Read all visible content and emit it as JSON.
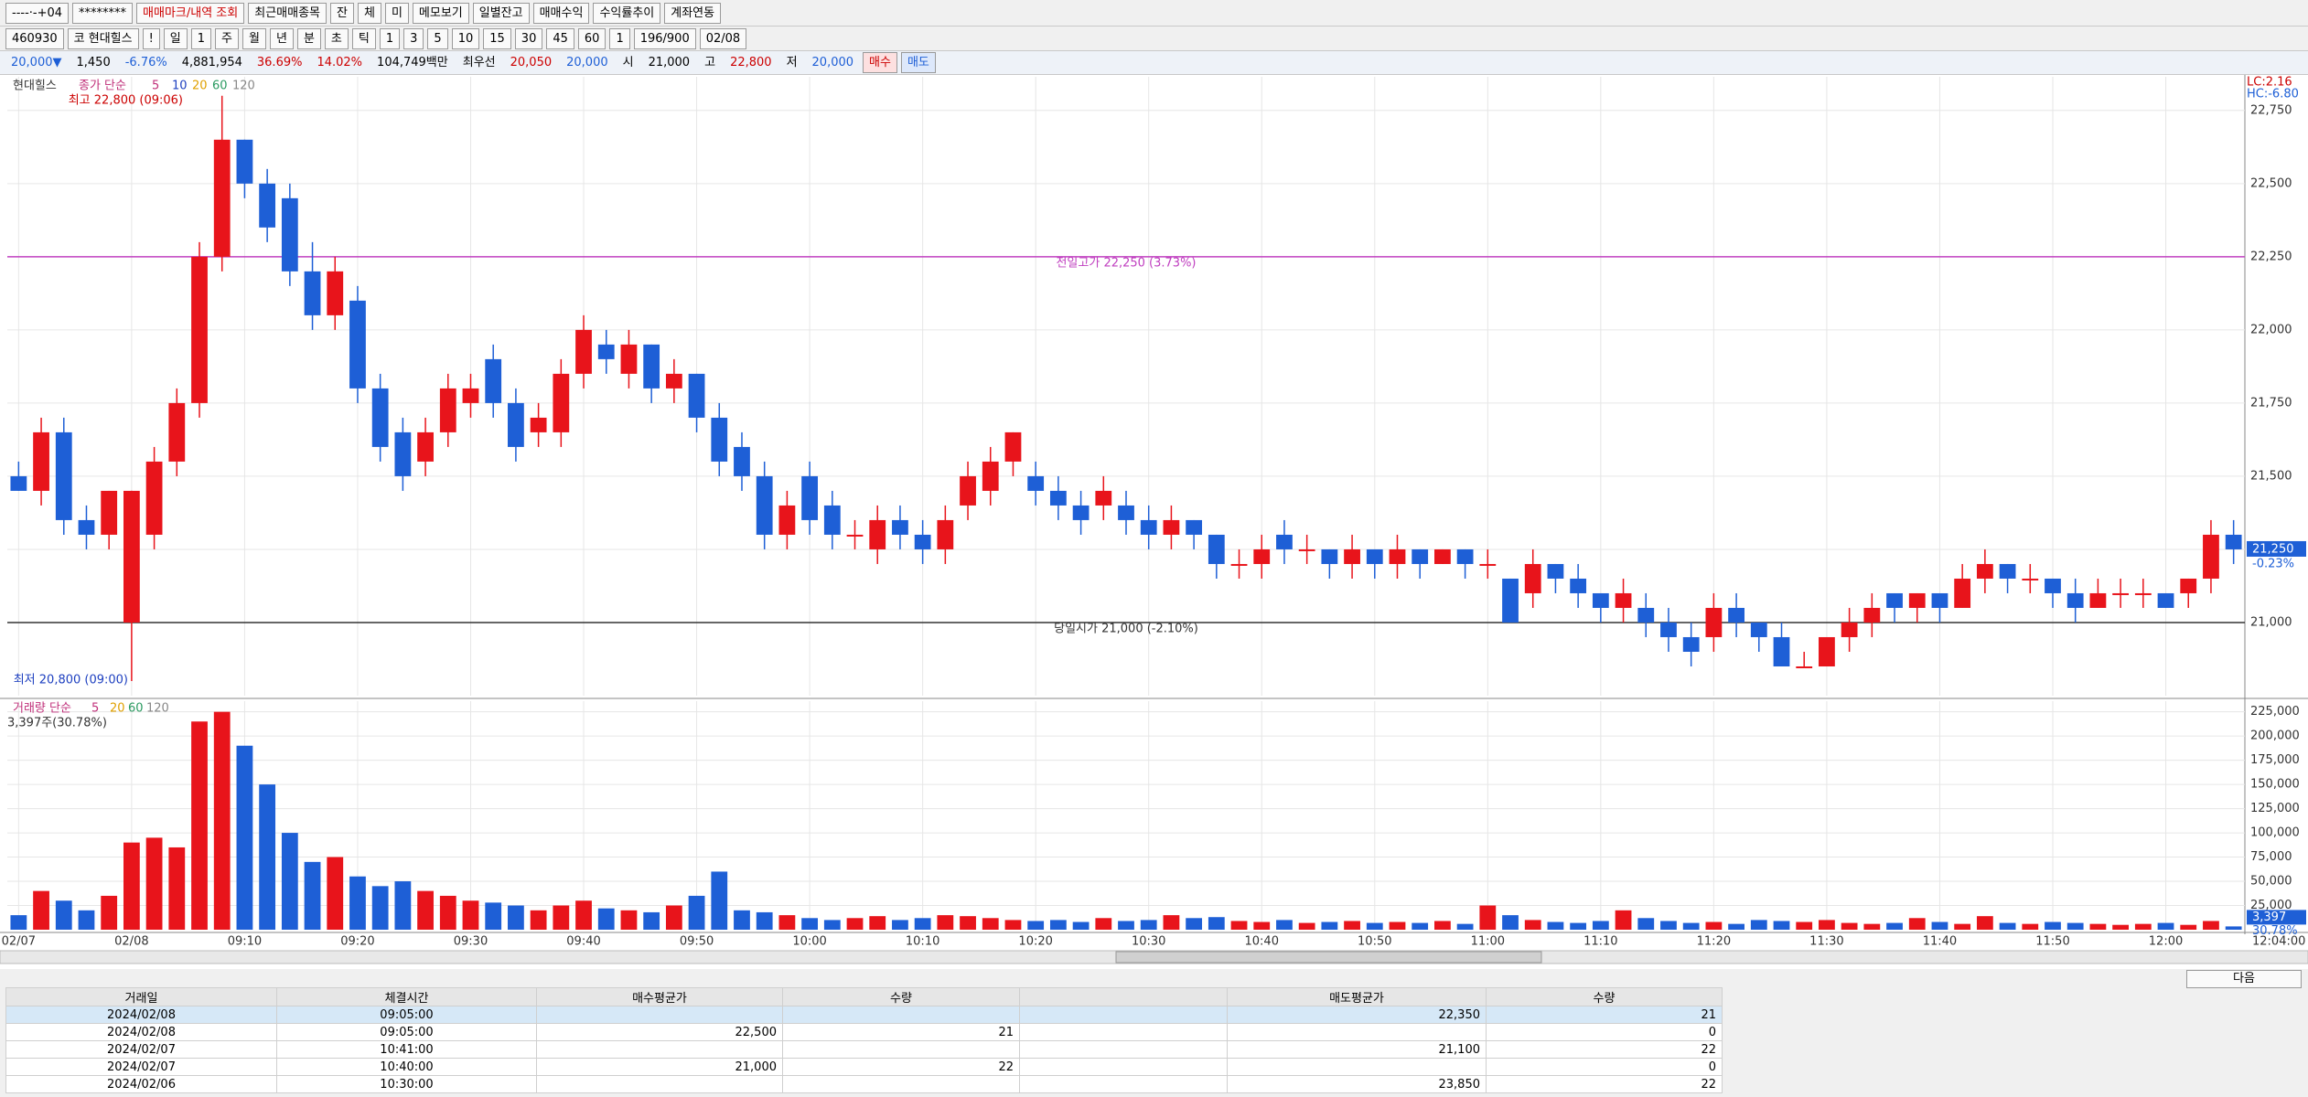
{
  "toolbar_row1": [
    "----·-+04",
    "********",
    "매매마크/내역 조회",
    "최근매매종목",
    "잔",
    "체",
    "미",
    "메모보기",
    "일별잔고",
    "매매수익",
    "수익률추이",
    "계좌연동"
  ],
  "toolbar_row2": [
    "460930",
    "코 현대힐스",
    "!",
    "일",
    "1",
    "주",
    "월",
    "년",
    "분",
    "초",
    "틱",
    "1",
    "3",
    "5",
    "10",
    "15",
    "30",
    "45",
    "60",
    "1",
    "196/900",
    "02/08"
  ],
  "quote_bar": [
    "20,000▼",
    "1,450",
    "-6.76%",
    "4,881,954",
    "36.69%",
    "14.02%",
    "104,749백만",
    "최우선",
    "20,050",
    "20,000",
    "시",
    "21,000",
    "고",
    "22,800",
    "저",
    "20,000",
    "매수",
    "매도"
  ],
  "chart_data": {
    "type": "candlestick",
    "title": "현대힐스",
    "indicator": "종가 단순",
    "ma_periods": [
      "5",
      "10",
      "20",
      "60",
      "120"
    ],
    "high_note": "최고 22,800 (09:06)",
    "low_note": "최저 20,800 (09:00)",
    "corner_labels": [
      "LC:2.16",
      "HC:-6.80"
    ],
    "last": {
      "value": 21250,
      "label": "21,250",
      "change": "-0.23%"
    },
    "reference_lines": [
      {
        "value": 22250,
        "label": "전일고가 22,250 (3.73%)",
        "color": "#c040c0"
      },
      {
        "value": 21000,
        "label": "당일시가 21,000 (-2.10%)",
        "color": "#333333"
      }
    ],
    "up_color": "#e8141b",
    "down_color": "#1e5fd6",
    "grid": true,
    "ylim": [
      20750,
      22865
    ],
    "yticks": [
      {
        "value": 21000,
        "label": "21,000"
      },
      {
        "value": 21250,
        "label": "21,250"
      },
      {
        "value": 21500,
        "label": "21,500"
      },
      {
        "value": 21750,
        "label": "21,750"
      },
      {
        "value": 22000,
        "label": "22,000"
      },
      {
        "value": 22250,
        "label": "22,250"
      },
      {
        "value": 22500,
        "label": "22,500"
      },
      {
        "value": 22750,
        "label": "22,750"
      }
    ],
    "categories": [
      "02/07",
      null,
      null,
      null,
      null,
      "02/08",
      null,
      null,
      null,
      null,
      "09:10",
      null,
      null,
      null,
      null,
      "09:20",
      null,
      null,
      null,
      null,
      "09:30",
      null,
      null,
      null,
      null,
      "09:40",
      null,
      null,
      null,
      null,
      "09:50",
      null,
      null,
      null,
      null,
      "10:00",
      null,
      null,
      null,
      null,
      "10:10",
      null,
      null,
      null,
      null,
      "10:20",
      null,
      null,
      null,
      null,
      "10:30",
      null,
      null,
      null,
      null,
      "10:40",
      null,
      null,
      null,
      null,
      "10:50",
      null,
      null,
      null,
      null,
      "11:00",
      null,
      null,
      null,
      null,
      "11:10",
      null,
      null,
      null,
      null,
      "11:20",
      null,
      null,
      null,
      null,
      "11:30",
      null,
      null,
      null,
      null,
      "11:40",
      null,
      null,
      null,
      null,
      "11:50",
      null,
      null,
      null,
      null,
      "12:00",
      null,
      null,
      null
    ],
    "axis_end_label": "12:04:00",
    "ohlc": [
      [
        21500,
        21550,
        21450,
        21450
      ],
      [
        21450,
        21700,
        21400,
        21650
      ],
      [
        21650,
        21700,
        21300,
        21350
      ],
      [
        21350,
        21400,
        21250,
        21300
      ],
      [
        21300,
        21450,
        21250,
        21450
      ],
      [
        21000,
        21450,
        20800,
        21450
      ],
      [
        21300,
        21600,
        21250,
        21550
      ],
      [
        21550,
        21800,
        21500,
        21750
      ],
      [
        21750,
        22300,
        21700,
        22250
      ],
      [
        22250,
        22800,
        22200,
        22650
      ],
      [
        22650,
        22650,
        22450,
        22500
      ],
      [
        22500,
        22550,
        22300,
        22350
      ],
      [
        22450,
        22500,
        22150,
        22200
      ],
      [
        22200,
        22300,
        22000,
        22050
      ],
      [
        22050,
        22250,
        22000,
        22200
      ],
      [
        22100,
        22150,
        21750,
        21800
      ],
      [
        21800,
        21850,
        21550,
        21600
      ],
      [
        21650,
        21700,
        21450,
        21500
      ],
      [
        21550,
        21700,
        21500,
        21650
      ],
      [
        21650,
        21850,
        21600,
        21800
      ],
      [
        21750,
        21850,
        21700,
        21800
      ],
      [
        21900,
        21950,
        21700,
        21750
      ],
      [
        21750,
        21800,
        21550,
        21600
      ],
      [
        21650,
        21750,
        21600,
        21700
      ],
      [
        21650,
        21900,
        21600,
        21850
      ],
      [
        21850,
        22050,
        21800,
        22000
      ],
      [
        21950,
        22000,
        21850,
        21900
      ],
      [
        21850,
        22000,
        21800,
        21950
      ],
      [
        21950,
        21950,
        21750,
        21800
      ],
      [
        21800,
        21900,
        21750,
        21850
      ],
      [
        21850,
        21850,
        21650,
        21700
      ],
      [
        21700,
        21750,
        21500,
        21550
      ],
      [
        21600,
        21650,
        21450,
        21500
      ],
      [
        21500,
        21550,
        21250,
        21300
      ],
      [
        21300,
        21450,
        21250,
        21400
      ],
      [
        21500,
        21550,
        21300,
        21350
      ],
      [
        21400,
        21450,
        21250,
        21300
      ],
      [
        21300,
        21350,
        21250,
        21300
      ],
      [
        21250,
        21400,
        21200,
        21350
      ],
      [
        21350,
        21400,
        21250,
        21300
      ],
      [
        21300,
        21350,
        21200,
        21250
      ],
      [
        21250,
        21400,
        21200,
        21350
      ],
      [
        21400,
        21550,
        21350,
        21500
      ],
      [
        21450,
        21600,
        21400,
        21550
      ],
      [
        21550,
        21650,
        21500,
        21650
      ],
      [
        21500,
        21550,
        21400,
        21450
      ],
      [
        21450,
        21500,
        21350,
        21400
      ],
      [
        21400,
        21450,
        21300,
        21350
      ],
      [
        21400,
        21500,
        21350,
        21450
      ],
      [
        21400,
        21450,
        21300,
        21350
      ],
      [
        21350,
        21400,
        21250,
        21300
      ],
      [
        21300,
        21400,
        21250,
        21350
      ],
      [
        21350,
        21350,
        21250,
        21300
      ],
      [
        21300,
        21300,
        21150,
        21200
      ],
      [
        21200,
        21250,
        21150,
        21200
      ],
      [
        21200,
        21300,
        21150,
        21250
      ],
      [
        21300,
        21350,
        21200,
        21250
      ],
      [
        21250,
        21300,
        21200,
        21250
      ],
      [
        21250,
        21250,
        21150,
        21200
      ],
      [
        21200,
        21300,
        21150,
        21250
      ],
      [
        21250,
        21250,
        21150,
        21200
      ],
      [
        21200,
        21300,
        21150,
        21250
      ],
      [
        21250,
        21250,
        21150,
        21200
      ],
      [
        21200,
        21250,
        21200,
        21250
      ],
      [
        21250,
        21250,
        21150,
        21200
      ],
      [
        21200,
        21250,
        21150,
        21200
      ],
      [
        21150,
        21150,
        21000,
        21000
      ],
      [
        21100,
        21250,
        21050,
        21200
      ],
      [
        21200,
        21200,
        21100,
        21150
      ],
      [
        21150,
        21200,
        21050,
        21100
      ],
      [
        21100,
        21100,
        21000,
        21050
      ],
      [
        21050,
        21150,
        21000,
        21100
      ],
      [
        21050,
        21100,
        20950,
        21000
      ],
      [
        21000,
        21050,
        20900,
        20950
      ],
      [
        20950,
        21000,
        20850,
        20900
      ],
      [
        20950,
        21100,
        20900,
        21050
      ],
      [
        21050,
        21100,
        20950,
        21000
      ],
      [
        21000,
        21000,
        20900,
        20950
      ],
      [
        20950,
        21000,
        20850,
        20850
      ],
      [
        20850,
        20900,
        20850,
        20850
      ],
      [
        20850,
        20950,
        20850,
        20950
      ],
      [
        20950,
        21050,
        20900,
        21000
      ],
      [
        21000,
        21100,
        20950,
        21050
      ],
      [
        21100,
        21100,
        21000,
        21050
      ],
      [
        21050,
        21100,
        21000,
        21100
      ],
      [
        21100,
        21100,
        21000,
        21050
      ],
      [
        21050,
        21200,
        21050,
        21150
      ],
      [
        21150,
        21250,
        21100,
        21200
      ],
      [
        21200,
        21200,
        21100,
        21150
      ],
      [
        21150,
        21200,
        21100,
        21150
      ],
      [
        21150,
        21150,
        21050,
        21100
      ],
      [
        21100,
        21150,
        21000,
        21050
      ],
      [
        21050,
        21150,
        21050,
        21100
      ],
      [
        21100,
        21150,
        21050,
        21100
      ],
      [
        21100,
        21150,
        21050,
        21100
      ],
      [
        21100,
        21100,
        21050,
        21050
      ],
      [
        21100,
        21150,
        21050,
        21150
      ],
      [
        21150,
        21350,
        21100,
        21300
      ],
      [
        21300,
        21350,
        21200,
        21250
      ]
    ],
    "volume_title": "거래량 단순",
    "volume_ma_periods": [
      "5",
      "20",
      "60",
      "120"
    ],
    "volume_note": "3,397주(30.78%)",
    "volume_last": {
      "value": 3397,
      "label": "3,397",
      "change": "30.78%"
    },
    "vlim": [
      0,
      236000
    ],
    "vticks": [
      {
        "value": 25000,
        "label": "25,000"
      },
      {
        "value": 50000,
        "label": "50,000"
      },
      {
        "value": 75000,
        "label": "75,000"
      },
      {
        "value": 100000,
        "label": "100,000"
      },
      {
        "value": 125000,
        "label": "125,000"
      },
      {
        "value": 150000,
        "label": "150,000"
      },
      {
        "value": 175000,
        "label": "175,000"
      },
      {
        "value": 200000,
        "label": "200,000"
      },
      {
        "value": 225000,
        "label": "225,000"
      }
    ],
    "volume": [
      15000,
      40000,
      30000,
      20000,
      35000,
      90000,
      95000,
      85000,
      215000,
      225000,
      190000,
      150000,
      100000,
      70000,
      75000,
      55000,
      45000,
      50000,
      40000,
      35000,
      30000,
      28000,
      25000,
      20000,
      25000,
      30000,
      22000,
      20000,
      18000,
      25000,
      35000,
      60000,
      20000,
      18000,
      15000,
      12000,
      10000,
      12000,
      14000,
      10000,
      12000,
      15000,
      14000,
      12000,
      10000,
      9000,
      10000,
      8000,
      12000,
      9000,
      10000,
      15000,
      12000,
      13000,
      9000,
      8000,
      10000,
      7000,
      8000,
      9000,
      7000,
      8000,
      7000,
      9000,
      6000,
      25000,
      15000,
      10000,
      8000,
      7000,
      9000,
      20000,
      12000,
      9000,
      7000,
      8000,
      6000,
      10000,
      9000,
      8000,
      10000,
      7000,
      6000,
      7000,
      12000,
      8000,
      6000,
      14000,
      7000,
      6000,
      8000,
      7000,
      6000,
      5000,
      6000,
      7000,
      5000,
      9000,
      3397
    ]
  },
  "table": {
    "headers": [
      "거래일",
      "체결시간",
      "매수평균가",
      "수량",
      null,
      "매도평균가",
      "수량"
    ],
    "rows": [
      [
        "2024/02/08",
        "09:05:00",
        null,
        null,
        null,
        "22,350",
        "21"
      ],
      [
        "2024/02/08",
        "09:05:00",
        "22,500",
        "21",
        null,
        null,
        "0"
      ],
      [
        "2024/02/07",
        "10:41:00",
        null,
        null,
        null,
        "21,100",
        "22"
      ],
      [
        "2024/02/07",
        "10:40:00",
        "21,000",
        "22",
        null,
        null,
        "0"
      ],
      [
        "2024/02/06",
        "10:30:00",
        null,
        null,
        null,
        "23,850",
        "22"
      ]
    ]
  },
  "next_button": "다음"
}
